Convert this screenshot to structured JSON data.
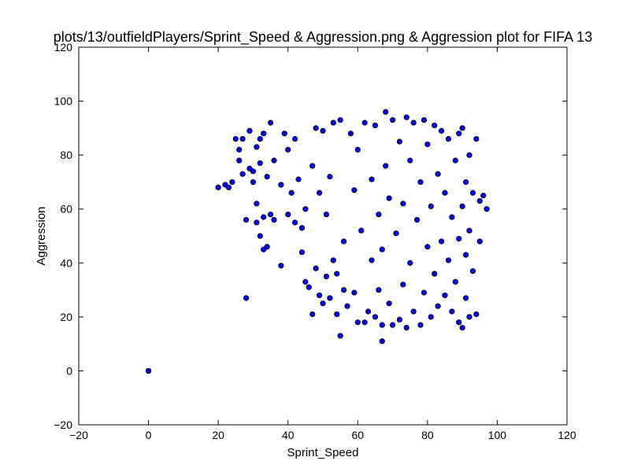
{
  "chart_data": {
    "type": "scatter",
    "title": "plots/13/outfieldPlayers/Sprint_Speed & Aggression.png & Aggression plot for FIFA 13",
    "xlabel": "Sprint_Speed",
    "ylabel": "Aggression",
    "xlim": [
      -20,
      120
    ],
    "ylim": [
      -20,
      120
    ],
    "xticks": [
      -20,
      0,
      20,
      40,
      60,
      80,
      100,
      120
    ],
    "yticks": [
      -20,
      0,
      20,
      40,
      60,
      80,
      100,
      120
    ],
    "grid": false,
    "marker_color": "#0000ff",
    "marker_edge_color": "#000000",
    "series": [
      {
        "points": [
          [
            0,
            0
          ],
          [
            0,
            0
          ],
          [
            0,
            0
          ],
          [
            20,
            68
          ],
          [
            22,
            69
          ],
          [
            23,
            68
          ],
          [
            24,
            70
          ],
          [
            25,
            86
          ],
          [
            26,
            78
          ],
          [
            26,
            82
          ],
          [
            27,
            86
          ],
          [
            27,
            73
          ],
          [
            28,
            56
          ],
          [
            28,
            27
          ],
          [
            29,
            75
          ],
          [
            29,
            89
          ],
          [
            30,
            70
          ],
          [
            30,
            74
          ],
          [
            31,
            62
          ],
          [
            31,
            55
          ],
          [
            31,
            83
          ],
          [
            32,
            77
          ],
          [
            32,
            50
          ],
          [
            32,
            86
          ],
          [
            33,
            57
          ],
          [
            33,
            45
          ],
          [
            33,
            88
          ],
          [
            34,
            46
          ],
          [
            34,
            72
          ],
          [
            35,
            92
          ],
          [
            35,
            58
          ],
          [
            36,
            78
          ],
          [
            36,
            56
          ],
          [
            38,
            39
          ],
          [
            38,
            69
          ],
          [
            39,
            88
          ],
          [
            40,
            58
          ],
          [
            40,
            82
          ],
          [
            41,
            66
          ],
          [
            42,
            55
          ],
          [
            42,
            86
          ],
          [
            43,
            71
          ],
          [
            44,
            44
          ],
          [
            44,
            53
          ],
          [
            45,
            33
          ],
          [
            45,
            60
          ],
          [
            46,
            31
          ],
          [
            47,
            21
          ],
          [
            47,
            76
          ],
          [
            48,
            38
          ],
          [
            48,
            90
          ],
          [
            49,
            28
          ],
          [
            49,
            66
          ],
          [
            50,
            25
          ],
          [
            50,
            89
          ],
          [
            51,
            35
          ],
          [
            51,
            58
          ],
          [
            52,
            27
          ],
          [
            52,
            72
          ],
          [
            53,
            41
          ],
          [
            53,
            92
          ],
          [
            54,
            21
          ],
          [
            54,
            36
          ],
          [
            55,
            13
          ],
          [
            55,
            93
          ],
          [
            56,
            30
          ],
          [
            56,
            48
          ],
          [
            57,
            24
          ],
          [
            58,
            88
          ],
          [
            59,
            29
          ],
          [
            59,
            67
          ],
          [
            60,
            18
          ],
          [
            60,
            82
          ],
          [
            61,
            52
          ],
          [
            62,
            18
          ],
          [
            62,
            92
          ],
          [
            63,
            22
          ],
          [
            64,
            41
          ],
          [
            64,
            71
          ],
          [
            65,
            20
          ],
          [
            65,
            91
          ],
          [
            66,
            30
          ],
          [
            66,
            58
          ],
          [
            67,
            11
          ],
          [
            67,
            17
          ],
          [
            67,
            45
          ],
          [
            68,
            96
          ],
          [
            68,
            76
          ],
          [
            69,
            25
          ],
          [
            69,
            64
          ],
          [
            70,
            17
          ],
          [
            70,
            93
          ],
          [
            71,
            51
          ],
          [
            72,
            19
          ],
          [
            72,
            85
          ],
          [
            73,
            32
          ],
          [
            73,
            62
          ],
          [
            74,
            16
          ],
          [
            74,
            94
          ],
          [
            75,
            40
          ],
          [
            75,
            78
          ],
          [
            76,
            22
          ],
          [
            76,
            92
          ],
          [
            77,
            56
          ],
          [
            78,
            17
          ],
          [
            78,
            70
          ],
          [
            79,
            29
          ],
          [
            79,
            93
          ],
          [
            80,
            46
          ],
          [
            80,
            84
          ],
          [
            81,
            20
          ],
          [
            81,
            61
          ],
          [
            82,
            36
          ],
          [
            82,
            91
          ],
          [
            83,
            24
          ],
          [
            83,
            73
          ],
          [
            84,
            48
          ],
          [
            84,
            89
          ],
          [
            85,
            28
          ],
          [
            85,
            66
          ],
          [
            86,
            41
          ],
          [
            86,
            86
          ],
          [
            87,
            22
          ],
          [
            87,
            57
          ],
          [
            88,
            33
          ],
          [
            88,
            78
          ],
          [
            89,
            18
          ],
          [
            89,
            49
          ],
          [
            89,
            88
          ],
          [
            90,
            16
          ],
          [
            90,
            61
          ],
          [
            90,
            90
          ],
          [
            91,
            27
          ],
          [
            91,
            43
          ],
          [
            91,
            70
          ],
          [
            92,
            20
          ],
          [
            92,
            52
          ],
          [
            92,
            80
          ],
          [
            93,
            37
          ],
          [
            93,
            66
          ],
          [
            94,
            21
          ],
          [
            94,
            86
          ],
          [
            95,
            48
          ],
          [
            95,
            63
          ],
          [
            96,
            65
          ],
          [
            97,
            60
          ]
        ]
      }
    ]
  }
}
